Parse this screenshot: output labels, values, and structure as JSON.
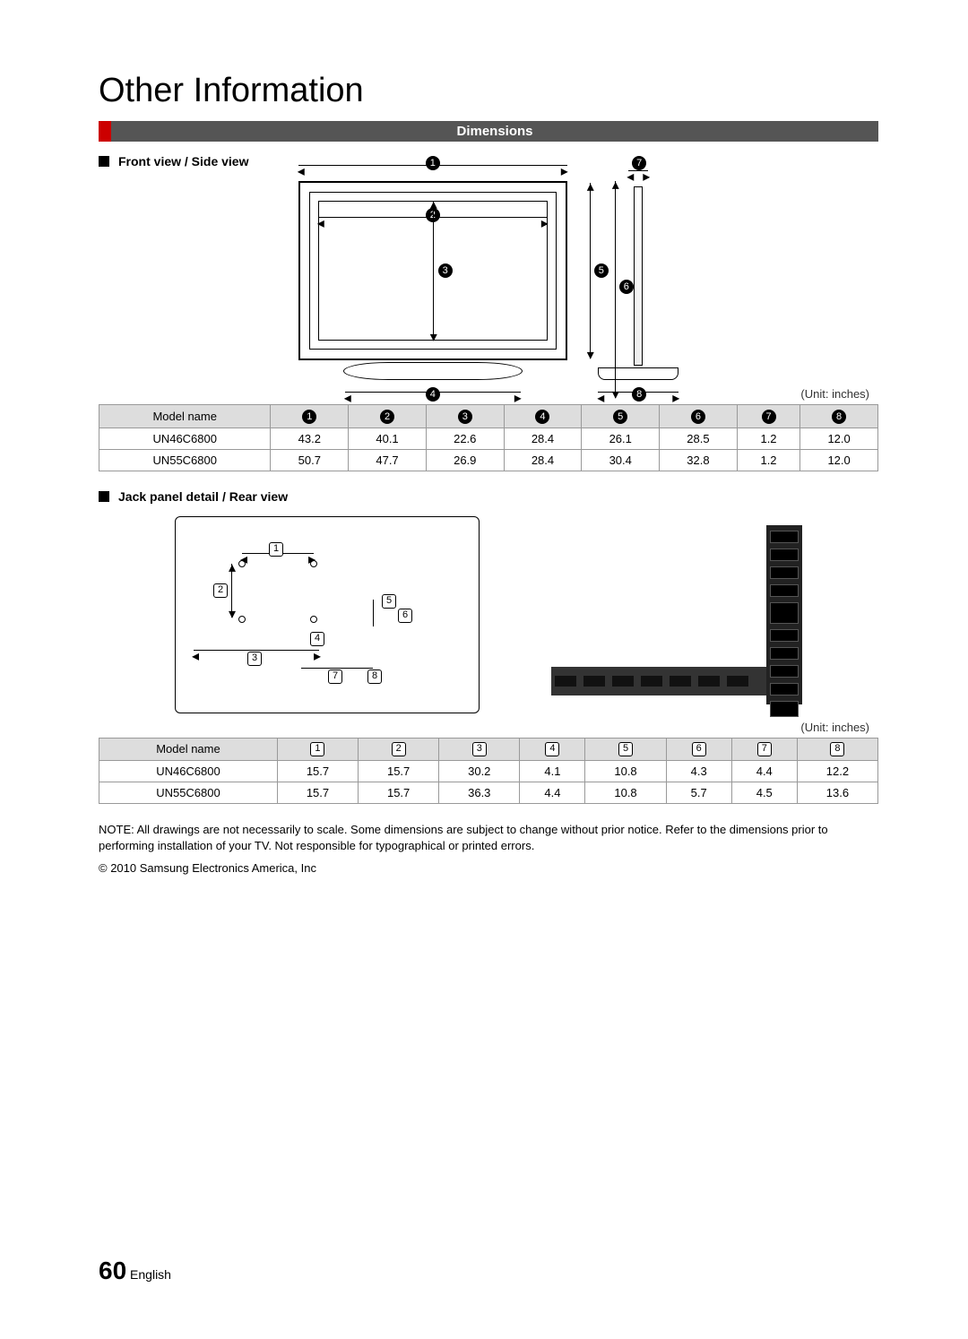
{
  "title": "Other Information",
  "section_header": "Dimensions",
  "subheading_front": "Front view / Side view",
  "subheading_rear": "Jack panel detail / Rear view",
  "unit_label": "(Unit: inches)",
  "front_markers": [
    "1",
    "2",
    "3",
    "4",
    "5",
    "6",
    "7",
    "8"
  ],
  "rear_markers": [
    "1",
    "2",
    "3",
    "4",
    "5",
    "6",
    "7",
    "8"
  ],
  "table_front": {
    "header_first": "Model name",
    "col_style": "circle",
    "columns": [
      "1",
      "2",
      "3",
      "4",
      "5",
      "6",
      "7",
      "8"
    ],
    "rows": [
      {
        "model": "UN46C6800",
        "vals": [
          "43.2",
          "40.1",
          "22.6",
          "28.4",
          "26.1",
          "28.5",
          "1.2",
          "12.0"
        ]
      },
      {
        "model": "UN55C6800",
        "vals": [
          "50.7",
          "47.7",
          "26.9",
          "28.4",
          "30.4",
          "32.8",
          "1.2",
          "12.0"
        ]
      }
    ]
  },
  "table_rear": {
    "header_first": "Model name",
    "col_style": "box",
    "columns": [
      "1",
      "2",
      "3",
      "4",
      "5",
      "6",
      "7",
      "8"
    ],
    "rows": [
      {
        "model": "UN46C6800",
        "vals": [
          "15.7",
          "15.7",
          "30.2",
          "4.1",
          "10.8",
          "4.3",
          "4.4",
          "12.2"
        ]
      },
      {
        "model": "UN55C6800",
        "vals": [
          "15.7",
          "15.7",
          "36.3",
          "4.4",
          "10.8",
          "5.7",
          "4.5",
          "13.6"
        ]
      }
    ]
  },
  "note_text": "NOTE: All drawings are not necessarily to scale. Some dimensions are subject to change without prior notice. Refer to the dimensions prior to performing installation of your TV. Not responsible for typographical or printed errors.",
  "copyright": "© 2010 Samsung Electronics America, Inc",
  "page_number": "60",
  "page_lang": "English",
  "colors": {
    "accent_red": "#c00",
    "bar_bg": "#555555",
    "table_header_bg": "#dddddd",
    "border": "#999999"
  }
}
